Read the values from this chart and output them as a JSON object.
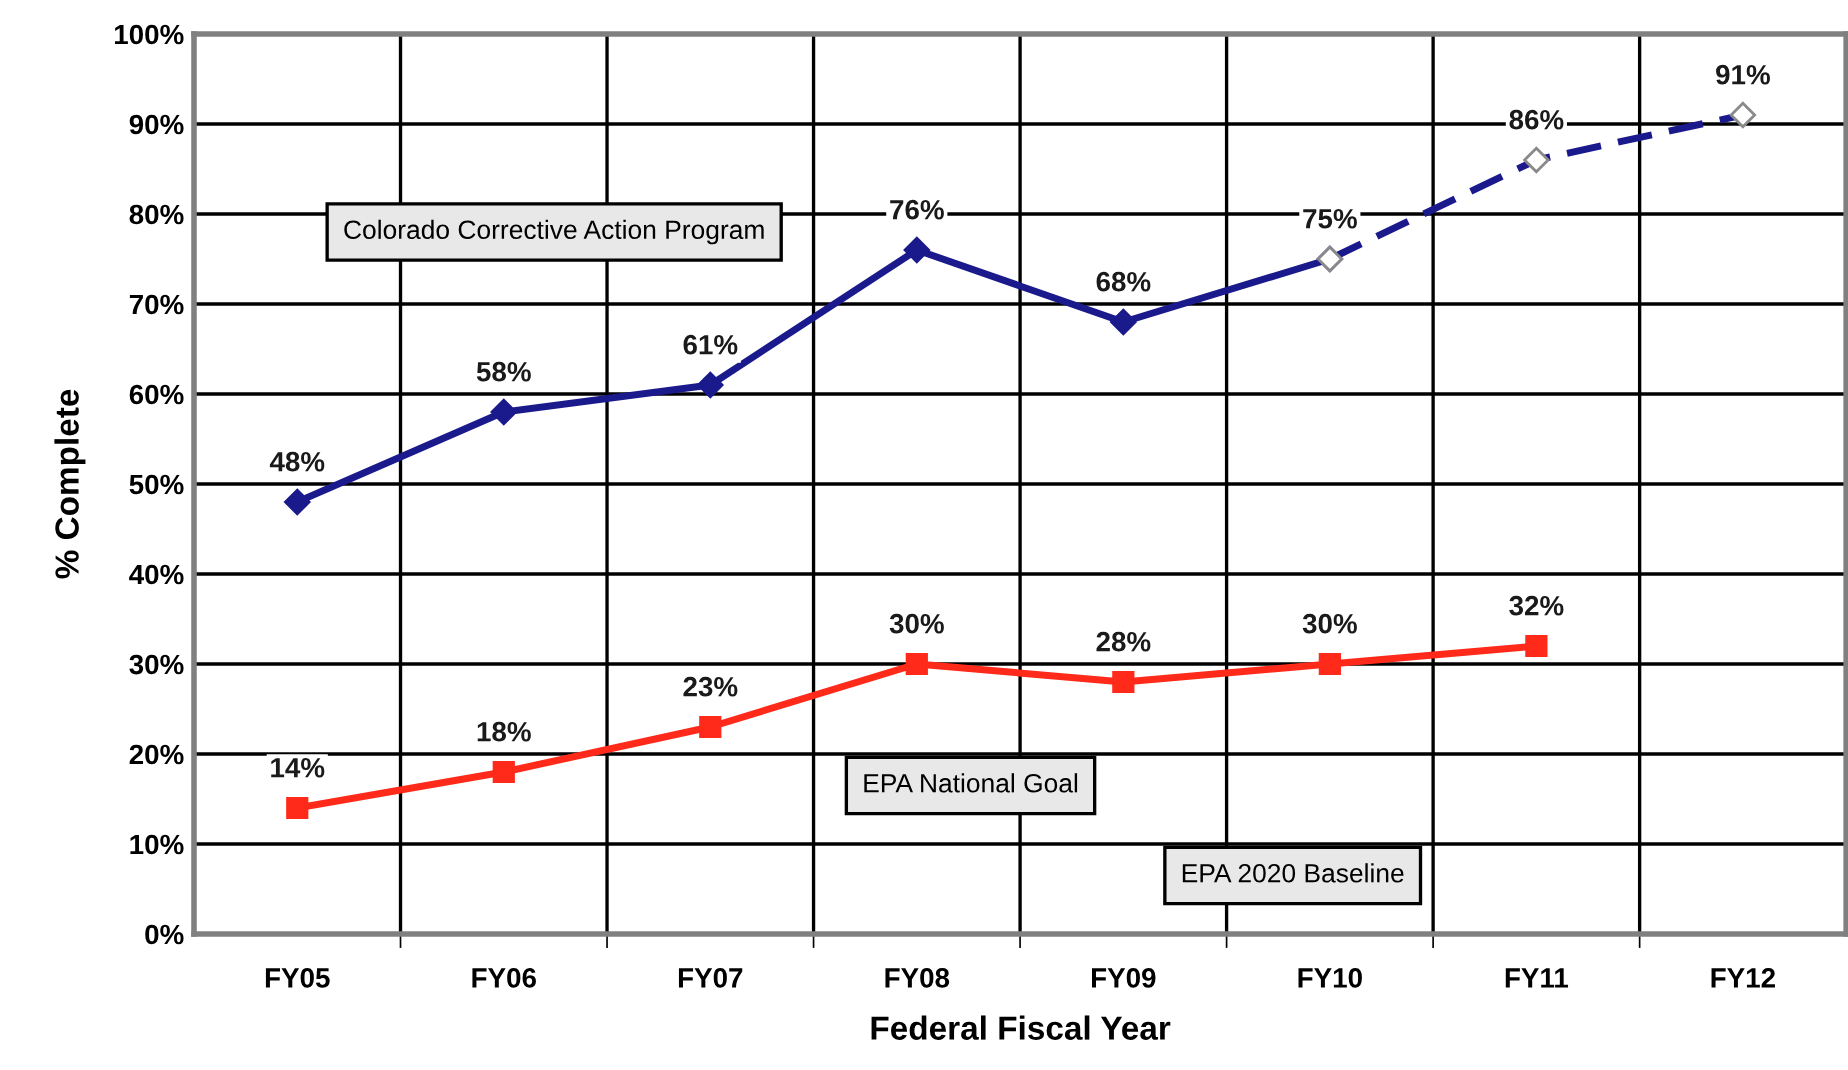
{
  "chart_data": {
    "type": "line",
    "xlabel": "Federal Fiscal Year",
    "ylabel": "% Complete",
    "categories": [
      "FY05",
      "FY06",
      "FY07",
      "FY08",
      "FY09",
      "FY10",
      "FY11",
      "FY12"
    ],
    "series": [
      {
        "color": "#1a1a8c",
        "values": [
          48,
          58,
          61,
          76,
          68,
          75,
          null,
          null
        ],
        "marker": "diamond",
        "line_style": "solid",
        "value_labels": [
          "48%",
          "58%",
          "61%",
          "76%",
          "68%",
          "75%",
          null,
          null
        ]
      },
      {
        "color": "#1a1a8c",
        "values": [
          null,
          null,
          null,
          null,
          null,
          75,
          86,
          91
        ],
        "marker": "diamond",
        "line_style": "dashed",
        "value_labels": [
          null,
          null,
          null,
          null,
          null,
          null,
          "86%",
          "91%"
        ]
      },
      {
        "color": "#ff2a1a",
        "values": [
          14,
          18,
          23,
          30,
          28,
          30,
          32,
          null
        ],
        "marker": "square",
        "line_style": "solid",
        "value_labels": [
          "14%",
          "18%",
          "23%",
          "30%",
          "28%",
          "30%",
          "32%",
          null
        ]
      }
    ],
    "annotations": [
      "Colorado Corrective Action Program",
      "EPA National Goal",
      "EPA 2020 Baseline"
    ],
    "ylim": [
      0,
      100
    ],
    "yticks": [
      {
        "value": 0,
        "label": "0%"
      },
      {
        "value": 10,
        "label": "10%"
      },
      {
        "value": 20,
        "label": "20%"
      },
      {
        "value": 30,
        "label": "30%"
      },
      {
        "value": 40,
        "label": "40%"
      },
      {
        "value": 50,
        "label": "50%"
      },
      {
        "value": 60,
        "label": "60%"
      },
      {
        "value": 70,
        "label": "70%"
      },
      {
        "value": 80,
        "label": "80%"
      },
      {
        "value": 90,
        "label": "90%"
      },
      {
        "value": 100,
        "label": "100%"
      }
    ],
    "grid": true,
    "legend": false
  }
}
